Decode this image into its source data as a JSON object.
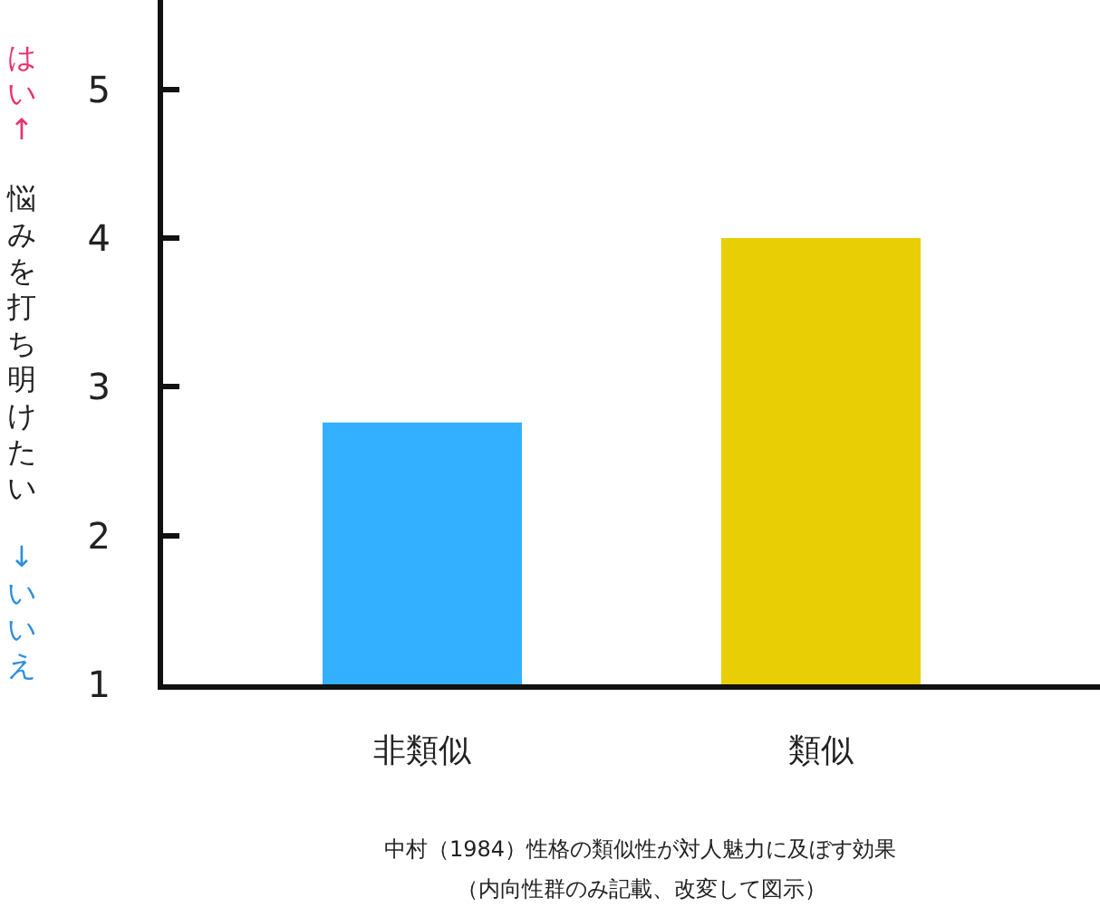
{
  "chart_data": {
    "type": "bar",
    "categories": [
      "非類似",
      "類似"
    ],
    "values": [
      2.76,
      4.0
    ],
    "colors": [
      "#33b0ff",
      "#e8cf05"
    ],
    "ylabel": "悩みを打ち明けたい",
    "ylim": [
      1,
      5.6
    ],
    "yticks": [
      1,
      2,
      3,
      4,
      5
    ],
    "annotations": [
      "はい↑",
      "↓いいえ",
      "中村（1984）性格の類似性が対人魅力に及ぼす効果",
      "（内向性群のみ記載、改変して図示）"
    ]
  }
}
